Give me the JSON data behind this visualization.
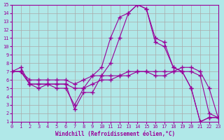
{
  "xlabel": "Windchill (Refroidissement éolien,°C)",
  "xlim": [
    0,
    23
  ],
  "ylim": [
    1,
    15
  ],
  "xticks": [
    0,
    1,
    2,
    3,
    4,
    5,
    6,
    7,
    8,
    9,
    10,
    11,
    12,
    13,
    14,
    15,
    16,
    17,
    18,
    19,
    20,
    21,
    22,
    23
  ],
  "yticks": [
    1,
    2,
    3,
    4,
    5,
    6,
    7,
    8,
    9,
    10,
    11,
    12,
    13,
    14,
    15
  ],
  "bg_color": "#b0e8e8",
  "line_color": "#990099",
  "grid_color": "#aaaaaa",
  "x_vals": [
    0,
    1,
    2,
    3,
    4,
    5,
    6,
    7,
    8,
    9,
    10,
    11,
    12,
    13,
    14,
    15,
    16,
    17,
    18,
    19,
    20,
    21,
    22,
    23
  ],
  "series": [
    [
      7.0,
      7.5,
      5.5,
      5.5,
      5.5,
      5.0,
      5.0,
      3.0,
      5.0,
      6.5,
      7.5,
      11.0,
      13.5,
      14.0,
      15.0,
      14.5,
      10.5,
      10.0,
      7.5,
      7.0,
      5.0,
      1.0,
      1.5,
      1.5
    ],
    [
      7.0,
      7.0,
      6.0,
      6.0,
      6.0,
      6.0,
      6.0,
      5.5,
      6.0,
      6.5,
      6.5,
      6.5,
      6.5,
      7.0,
      7.0,
      7.0,
      7.0,
      7.0,
      7.0,
      7.0,
      7.0,
      6.5,
      2.0,
      1.5
    ],
    [
      7.0,
      7.0,
      5.5,
      5.5,
      5.5,
      5.5,
      5.5,
      5.0,
      5.0,
      5.5,
      6.0,
      6.0,
      6.5,
      6.5,
      7.0,
      7.0,
      6.5,
      6.5,
      7.0,
      7.5,
      7.5,
      7.0,
      5.0,
      1.5
    ],
    [
      7.0,
      7.0,
      5.5,
      5.0,
      5.5,
      5.5,
      5.5,
      2.5,
      4.5,
      4.5,
      6.5,
      8.0,
      11.0,
      14.0,
      15.0,
      14.5,
      11.0,
      10.5,
      7.5,
      7.0,
      5.0,
      1.0,
      1.5,
      1.5
    ]
  ]
}
